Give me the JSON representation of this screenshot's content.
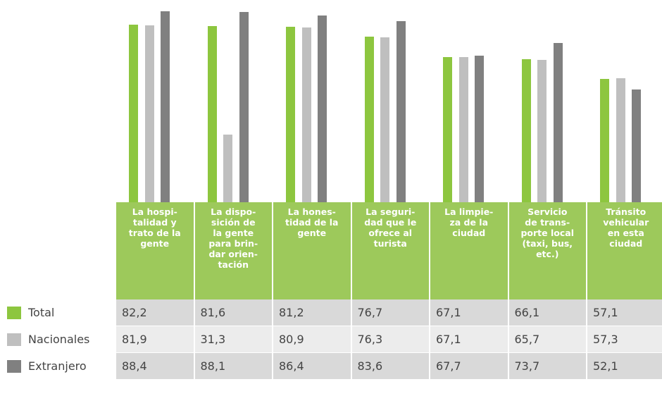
{
  "chart_data": {
    "type": "bar",
    "categories": [
      "La hospi-\ntalidad y\ntrato de la\ngente",
      "La dispo-\nsición de\nla gente\npara brin-\ndar orien-\ntación",
      "La hones-\ntidad de la\ngente",
      "La seguri-\ndad que le\nofrece al\nturista",
      "La limpie-\nza de la\nciudad",
      "Servicio\nde trans-\nporte local\n(taxi, bus,\netc.)",
      "Tránsito\nvehicular\nen esta\nciudad"
    ],
    "series": [
      {
        "name": "Total",
        "color": "#8dc63f",
        "values": [
          82.2,
          81.6,
          81.2,
          76.7,
          67.1,
          66.1,
          57.1
        ],
        "value_labels": [
          "82,2",
          "81,6",
          "81,2",
          "76,7",
          "67,1",
          "66,1",
          "57,1"
        ]
      },
      {
        "name": "Nacionales",
        "color": "#bfbfbf",
        "values": [
          81.9,
          31.3,
          80.9,
          76.3,
          67.1,
          65.7,
          57.3
        ],
        "value_labels": [
          "81,9",
          "31,3",
          "80,9",
          "76,3",
          "67,1",
          "65,7",
          "57,3"
        ]
      },
      {
        "name": "Extranjero",
        "color": "#808080",
        "values": [
          88.4,
          88.1,
          86.4,
          83.6,
          67.7,
          73.7,
          52.1
        ],
        "value_labels": [
          "88,4",
          "88,1",
          "86,4",
          "83,6",
          "67,7",
          "73,7",
          "52,1"
        ]
      }
    ],
    "ylim": [
      0,
      93.5
    ]
  }
}
